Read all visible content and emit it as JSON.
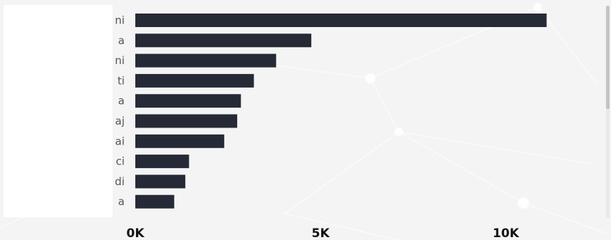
{
  "chart_data": {
    "type": "bar",
    "orientation": "horizontal",
    "categories": [
      "ni",
      "a",
      "ni",
      "ti",
      "a",
      "aj",
      "ai",
      "ci",
      "di",
      "a"
    ],
    "values": [
      11100,
      4750,
      3800,
      3200,
      2850,
      2750,
      2400,
      1450,
      1350,
      1050
    ],
    "xlim": [
      0,
      11300
    ],
    "x_ticks": [
      {
        "value": 0,
        "label": "0K"
      },
      {
        "value": 5000,
        "label": "5K"
      },
      {
        "value": 10000,
        "label": "10K"
      }
    ],
    "title": "",
    "xlabel": "",
    "ylabel": "",
    "grid": false,
    "bar_color": "#262a36",
    "background_color": "#f4f4f5"
  }
}
